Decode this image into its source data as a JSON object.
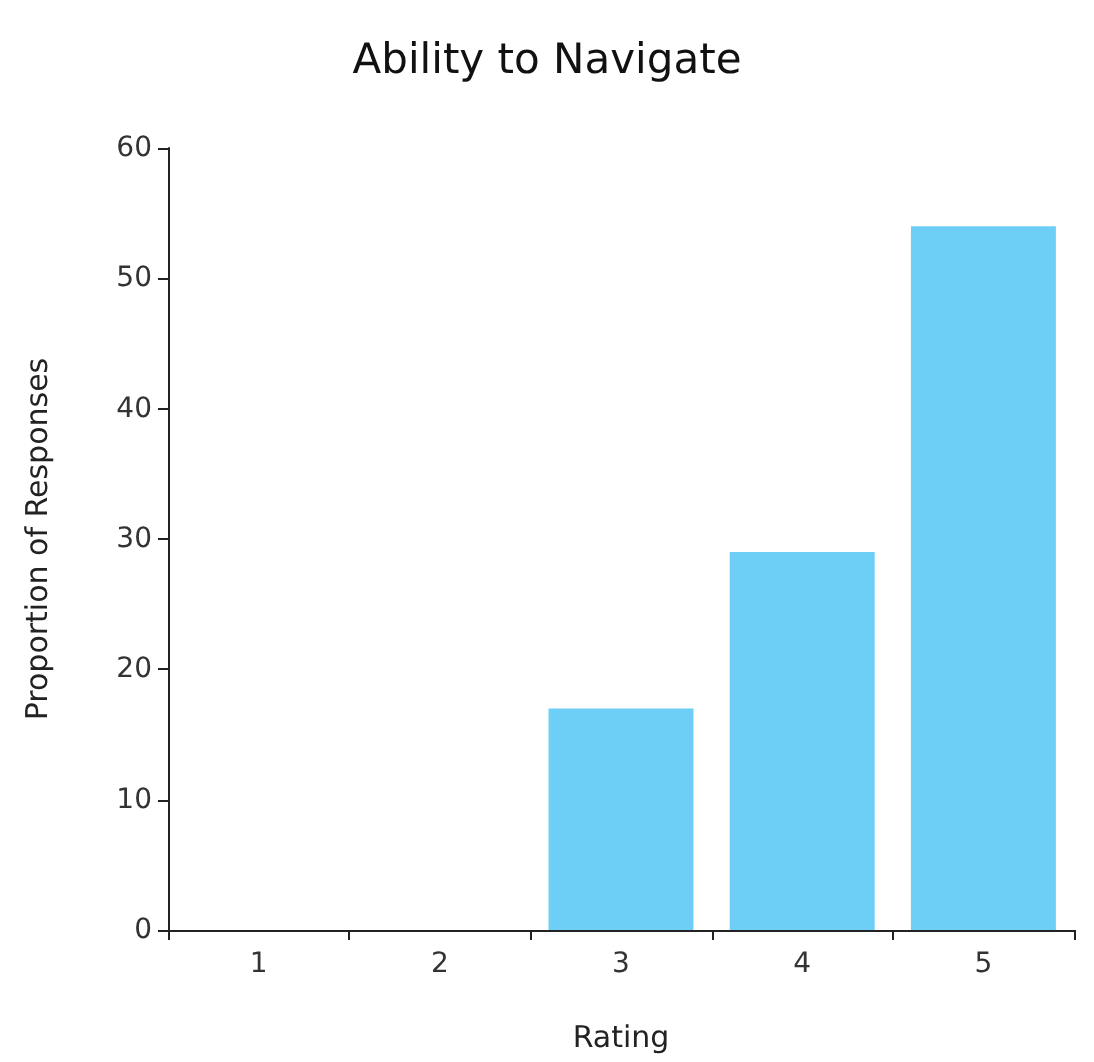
{
  "chart_data": {
    "type": "bar",
    "title": "Ability to Navigate",
    "xlabel": "Rating",
    "ylabel": "Proportion of Responses",
    "categories": [
      "1",
      "2",
      "3",
      "4",
      "5"
    ],
    "values": [
      0,
      0,
      17,
      29,
      54
    ],
    "color": "#6dcff6",
    "ylim": [
      0,
      60
    ],
    "yticks": [
      0,
      10,
      20,
      30,
      40,
      50,
      60
    ],
    "grid": false
  }
}
